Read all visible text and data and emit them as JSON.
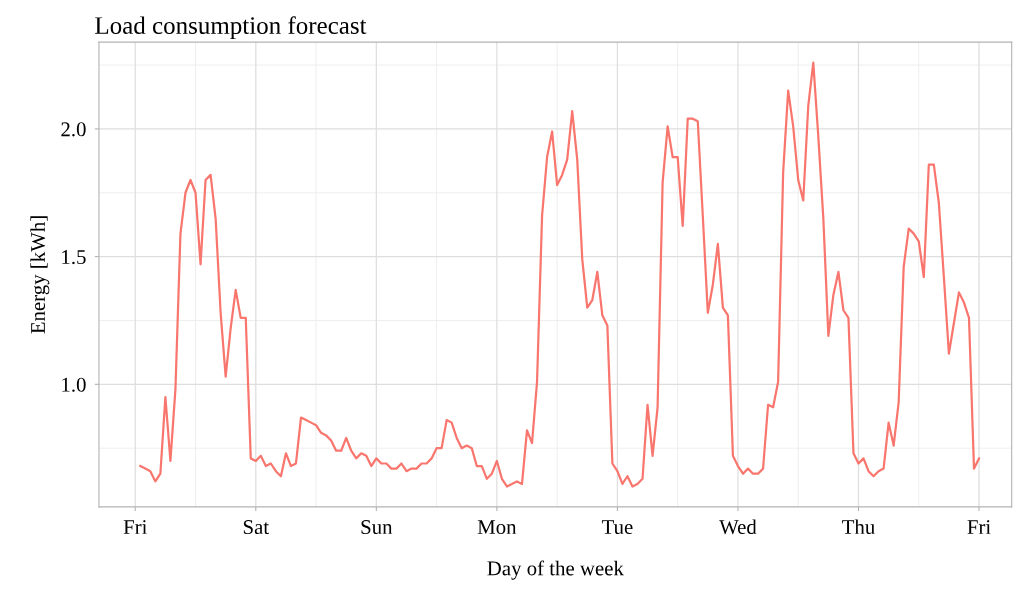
{
  "chart_data": {
    "type": "line",
    "title": "Load consumption forecast",
    "xlabel": "Day of the week",
    "ylabel": "Energy [kWh]",
    "categories": [
      "Fri",
      null,
      null,
      null,
      null,
      null,
      null,
      null,
      null,
      null,
      null,
      null,
      null,
      null,
      null,
      null,
      null,
      null,
      null,
      null,
      null,
      null,
      null,
      null,
      "Sat",
      null,
      null,
      null,
      null,
      null,
      null,
      null,
      null,
      null,
      null,
      null,
      null,
      null,
      null,
      null,
      null,
      null,
      null,
      null,
      null,
      null,
      null,
      null,
      "Sun",
      null,
      null,
      null,
      null,
      null,
      null,
      null,
      null,
      null,
      null,
      null,
      null,
      null,
      null,
      null,
      null,
      null,
      null,
      null,
      null,
      null,
      null,
      null,
      "Mon",
      null,
      null,
      null,
      null,
      null,
      null,
      null,
      null,
      null,
      null,
      null,
      null,
      null,
      null,
      null,
      null,
      null,
      null,
      null,
      null,
      null,
      null,
      null,
      "Tue",
      null,
      null,
      null,
      null,
      null,
      null,
      null,
      null,
      null,
      null,
      null,
      null,
      null,
      null,
      null,
      null,
      null,
      null,
      null,
      null,
      null,
      null,
      null,
      "Wed",
      null,
      null,
      null,
      null,
      null,
      null,
      null,
      null,
      null,
      null,
      null,
      null,
      null,
      null,
      null,
      null,
      null,
      null,
      null,
      null,
      null,
      null,
      null,
      "Thu",
      null,
      null,
      null,
      null,
      null,
      null,
      null,
      null,
      null,
      null,
      null,
      null,
      null,
      null,
      null,
      null,
      null,
      null,
      null,
      null,
      null,
      null,
      null,
      "Fri"
    ],
    "series": [
      {
        "color": "#f8766d",
        "values": [
          null,
          0.68,
          0.67,
          0.66,
          0.62,
          0.65,
          0.95,
          0.7,
          0.98,
          1.59,
          1.75,
          1.8,
          1.75,
          1.47,
          1.8,
          1.82,
          1.65,
          1.28,
          1.03,
          1.22,
          1.37,
          1.26,
          1.26,
          0.71,
          0.7,
          0.72,
          0.68,
          0.69,
          0.66,
          0.64,
          0.73,
          0.68,
          0.69,
          0.87,
          0.86,
          0.85,
          0.84,
          0.81,
          0.8,
          0.78,
          0.74,
          0.74,
          0.79,
          0.74,
          0.71,
          0.73,
          0.72,
          0.68,
          0.71,
          0.69,
          0.69,
          0.67,
          0.67,
          0.69,
          0.66,
          0.67,
          0.67,
          0.69,
          0.69,
          0.71,
          0.75,
          0.75,
          0.86,
          0.85,
          0.79,
          0.75,
          0.76,
          0.75,
          0.68,
          0.68,
          0.63,
          0.65,
          0.7,
          0.63,
          0.6,
          0.61,
          0.62,
          0.61,
          0.82,
          0.77,
          1.01,
          1.66,
          1.89,
          1.99,
          1.78,
          1.82,
          1.88,
          2.07,
          1.88,
          1.49,
          1.3,
          1.33,
          1.44,
          1.27,
          1.23,
          0.69,
          0.66,
          0.61,
          0.64,
          0.6,
          0.61,
          0.63,
          0.92,
          0.72,
          0.91,
          1.79,
          2.01,
          1.89,
          1.89,
          1.62,
          2.04,
          2.04,
          2.03,
          1.66,
          1.28,
          1.39,
          1.55,
          1.3,
          1.27,
          0.72,
          0.68,
          0.65,
          0.67,
          0.65,
          0.65,
          0.67,
          0.92,
          0.91,
          1.01,
          1.83,
          2.15,
          2.01,
          1.8,
          1.72,
          2.09,
          2.26,
          1.97,
          1.65,
          1.19,
          1.35,
          1.44,
          1.29,
          1.26,
          0.73,
          0.69,
          0.71,
          0.66,
          0.64,
          0.66,
          0.67,
          0.85,
          0.76,
          0.93,
          1.46,
          1.61,
          1.59,
          1.56,
          1.42,
          1.86,
          1.86,
          1.71,
          1.42,
          1.12,
          1.24,
          1.36,
          1.32,
          1.26,
          0.67,
          0.71
        ]
      }
    ],
    "ylim": [
      0.52,
      2.34
    ],
    "yticks": [
      {
        "value": 1.0,
        "label": "1.0"
      },
      {
        "value": 1.5,
        "label": "1.5"
      },
      {
        "value": 2.0,
        "label": "2.0"
      }
    ],
    "grid": true,
    "marker": "none",
    "line_style": "solid"
  }
}
